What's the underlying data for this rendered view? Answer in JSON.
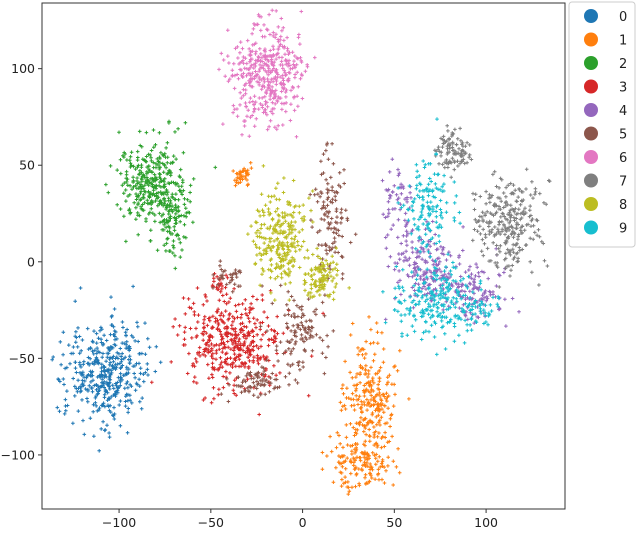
{
  "chart_data": {
    "type": "scatter",
    "title": "",
    "xlabel": "",
    "ylabel": "",
    "xlim": [
      -142,
      143
    ],
    "ylim": [
      -128,
      134
    ],
    "xticks": [
      -100,
      -50,
      0,
      50,
      100
    ],
    "yticks": [
      100,
      50,
      0,
      -50,
      -100
    ],
    "xtick_labels": [
      "−100",
      "−50",
      "0",
      "50",
      "100"
    ],
    "ytick_labels": [
      "100",
      "50",
      "0",
      "−50",
      "−100"
    ],
    "grid": false,
    "legend_position": "right, outside plot (top)",
    "marker": "plus",
    "series": [
      {
        "name": "0",
        "color": "#1f77b4",
        "clusters": [
          {
            "cx": -107,
            "cy": -57,
            "sx": 11,
            "sy": 13,
            "n": 420
          }
        ]
      },
      {
        "name": "1",
        "color": "#ff7f0e",
        "clusters": [
          {
            "cx": 36,
            "cy": -72,
            "sx": 7,
            "sy": 16,
            "n": 260
          },
          {
            "cx": 32,
            "cy": -105,
            "sx": 8,
            "sy": 6,
            "n": 140
          },
          {
            "cx": -33,
            "cy": 45,
            "sx": 3,
            "sy": 3,
            "n": 40
          }
        ]
      },
      {
        "name": "2",
        "color": "#2ca02c",
        "clusters": [
          {
            "cx": -82,
            "cy": 40,
            "sx": 9,
            "sy": 11,
            "n": 330
          },
          {
            "cx": -70,
            "cy": 22,
            "sx": 5,
            "sy": 9,
            "n": 90
          }
        ]
      },
      {
        "name": "3",
        "color": "#d62728",
        "clusters": [
          {
            "cx": -38,
            "cy": -42,
            "sx": 13,
            "sy": 12,
            "n": 420
          },
          {
            "cx": -45,
            "cy": -12,
            "sx": 3,
            "sy": 3,
            "n": 20
          }
        ]
      },
      {
        "name": "4",
        "color": "#9467bd",
        "clusters": [
          {
            "cx": 68,
            "cy": -2,
            "sx": 10,
            "sy": 10,
            "n": 200
          },
          {
            "cx": 95,
            "cy": -15,
            "sx": 8,
            "sy": 8,
            "n": 110
          },
          {
            "cx": 52,
            "cy": 32,
            "sx": 4,
            "sy": 7,
            "n": 50
          }
        ]
      },
      {
        "name": "5",
        "color": "#8c564b",
        "clusters": [
          {
            "cx": 15,
            "cy": 20,
            "sx": 5,
            "sy": 16,
            "n": 120
          },
          {
            "cx": -3,
            "cy": -35,
            "sx": 7,
            "sy": 9,
            "n": 110
          },
          {
            "cx": -40,
            "cy": -8,
            "sx": 4,
            "sy": 3,
            "n": 35
          },
          {
            "cx": -25,
            "cy": -62,
            "sx": 9,
            "sy": 4,
            "n": 80
          }
        ]
      },
      {
        "name": "6",
        "color": "#e377c2",
        "clusters": [
          {
            "cx": -20,
            "cy": 98,
            "sx": 10,
            "sy": 13,
            "n": 420
          }
        ]
      },
      {
        "name": "7",
        "color": "#7f7f7f",
        "clusters": [
          {
            "cx": 82,
            "cy": 57,
            "sx": 5,
            "sy": 5,
            "n": 100
          },
          {
            "cx": 112,
            "cy": 20,
            "sx": 9,
            "sy": 11,
            "n": 270
          }
        ]
      },
      {
        "name": "8",
        "color": "#bcbd22",
        "clusters": [
          {
            "cx": -12,
            "cy": 12,
            "sx": 7,
            "sy": 12,
            "n": 260
          },
          {
            "cx": 10,
            "cy": -8,
            "sx": 6,
            "sy": 6,
            "n": 110
          }
        ]
      },
      {
        "name": "9",
        "color": "#17becf",
        "clusters": [
          {
            "cx": 68,
            "cy": 28,
            "sx": 6,
            "sy": 12,
            "n": 140
          },
          {
            "cx": 72,
            "cy": -20,
            "sx": 10,
            "sy": 10,
            "n": 210
          },
          {
            "cx": 95,
            "cy": -25,
            "sx": 6,
            "sy": 5,
            "n": 60
          }
        ]
      }
    ]
  }
}
